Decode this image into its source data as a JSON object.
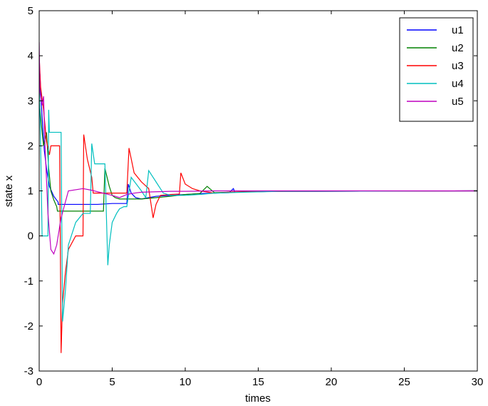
{
  "chart_data": {
    "type": "line",
    "title": "",
    "xlabel": "times",
    "ylabel": "state x",
    "xlim": [
      0,
      30
    ],
    "ylim": [
      -3,
      5
    ],
    "xticks": [
      0,
      5,
      10,
      15,
      20,
      25,
      30
    ],
    "yticks": [
      -3,
      -2,
      -1,
      0,
      1,
      2,
      3,
      4,
      5
    ],
    "grid": false,
    "legend_position": "top-right",
    "series": [
      {
        "name": "u1",
        "color": "#0000ff",
        "x": [
          0,
          0.05,
          0.15,
          0.25,
          0.35,
          0.5,
          0.7,
          1.0,
          1.3,
          1.3,
          2.0,
          3.0,
          3.0,
          4.0,
          5.0,
          6.0,
          6.1,
          6.3,
          6.6,
          7.0,
          8.0,
          9.0,
          10.0,
          11.0,
          12.0,
          13.0,
          13.3,
          13.4,
          13.5,
          14.0,
          15.0,
          16.0,
          19.0,
          30.0
        ],
        "y": [
          2.8,
          3.6,
          2.9,
          2.4,
          1.9,
          1.5,
          1.1,
          0.88,
          0.75,
          0.7,
          0.7,
          0.7,
          0.7,
          0.7,
          0.72,
          0.72,
          1.15,
          0.95,
          0.85,
          0.82,
          0.88,
          0.9,
          0.92,
          0.94,
          0.95,
          0.96,
          1.05,
          0.97,
          0.97,
          0.98,
          0.98,
          0.99,
          0.99,
          1.0
        ]
      },
      {
        "name": "u2",
        "color": "#008000",
        "x": [
          0,
          0.2,
          0.3,
          0.5,
          0.65,
          0.8,
          1.0,
          1.2,
          1.25,
          2.0,
          3.0,
          3.5,
          4.4,
          4.5,
          4.8,
          5.0,
          5.2,
          5.5,
          6.0,
          7.0,
          8.0,
          9.0,
          10.0,
          11.0,
          11.5,
          12.0,
          13.0,
          14.0,
          16.0,
          30.0
        ],
        "y": [
          3.0,
          2.3,
          2.0,
          2.3,
          1.5,
          1.0,
          0.8,
          0.65,
          0.55,
          0.55,
          0.55,
          0.55,
          0.55,
          1.5,
          1.1,
          0.9,
          0.85,
          0.82,
          0.82,
          0.82,
          0.85,
          0.88,
          0.92,
          0.94,
          1.1,
          0.96,
          0.97,
          0.98,
          0.99,
          1.0
        ]
      },
      {
        "name": "u3",
        "color": "#ff0000",
        "x": [
          0,
          0.1,
          0.3,
          0.5,
          0.7,
          0.8,
          1.0,
          1.2,
          1.4,
          1.5,
          1.6,
          1.8,
          2.0,
          2.5,
          3.0,
          3.05,
          3.3,
          3.6,
          3.7,
          4.0,
          5.0,
          6.0,
          6.15,
          6.5,
          7.0,
          7.5,
          7.8,
          8.0,
          8.3,
          9.0,
          9.6,
          9.7,
          10.0,
          10.5,
          11.0,
          12.0,
          12.5,
          13.0,
          14.0,
          17.0,
          30.0
        ],
        "y": [
          4.0,
          3.3,
          2.8,
          2.1,
          1.8,
          2.0,
          2.0,
          2.0,
          2.0,
          -2.6,
          -1.5,
          -0.8,
          -0.3,
          0.0,
          0.0,
          2.25,
          1.7,
          1.3,
          0.95,
          0.95,
          0.95,
          0.95,
          1.95,
          1.4,
          1.2,
          1.05,
          0.4,
          0.7,
          0.9,
          0.92,
          0.93,
          1.4,
          1.15,
          1.05,
          1.0,
          0.95,
          0.96,
          0.97,
          0.98,
          0.99,
          1.0
        ]
      },
      {
        "name": "u4",
        "color": "#00bfbf",
        "x": [
          0,
          0.1,
          0.2,
          0.3,
          0.6,
          0.65,
          0.7,
          0.9,
          1.0,
          1.2,
          1.5,
          1.6,
          1.8,
          2.0,
          2.5,
          3.0,
          3.5,
          3.6,
          3.8,
          4.0,
          4.5,
          4.7,
          4.8,
          5.0,
          5.3,
          5.5,
          5.8,
          6.0,
          6.3,
          7.0,
          7.3,
          7.5,
          8.0,
          8.5,
          9.0,
          10.0,
          11.0,
          12.0,
          14.0,
          16.5,
          17.0,
          30.0
        ],
        "y": [
          3.5,
          2.0,
          0.0,
          0.0,
          0.0,
          2.8,
          2.3,
          2.3,
          2.3,
          2.3,
          2.3,
          -1.9,
          -1.2,
          -0.2,
          0.3,
          0.5,
          0.5,
          2.05,
          1.6,
          1.6,
          1.6,
          -0.65,
          -0.2,
          0.3,
          0.5,
          0.6,
          0.65,
          0.65,
          1.3,
          1.0,
          0.85,
          1.45,
          1.2,
          0.95,
          0.9,
          0.9,
          0.92,
          0.95,
          0.97,
          0.99,
          0.99,
          1.0
        ]
      },
      {
        "name": "u5",
        "color": "#bf00bf",
        "x": [
          0,
          0.05,
          0.2,
          0.3,
          0.4,
          0.6,
          0.8,
          1.0,
          1.2,
          1.5,
          2.0,
          3.0,
          3.5,
          4.0,
          5.0,
          5.5,
          6.0,
          6.5,
          7.0,
          8.0,
          9.0,
          10.0,
          12.0,
          15.0,
          20.0,
          30.0
        ],
        "y": [
          4.3,
          3.2,
          2.9,
          3.1,
          2.0,
          0.5,
          -0.3,
          -0.4,
          -0.2,
          0.4,
          1.0,
          1.05,
          1.02,
          0.98,
          0.9,
          0.85,
          0.92,
          0.95,
          0.97,
          0.98,
          0.99,
          0.99,
          1.0,
          1.0,
          1.0,
          1.0
        ]
      }
    ]
  }
}
